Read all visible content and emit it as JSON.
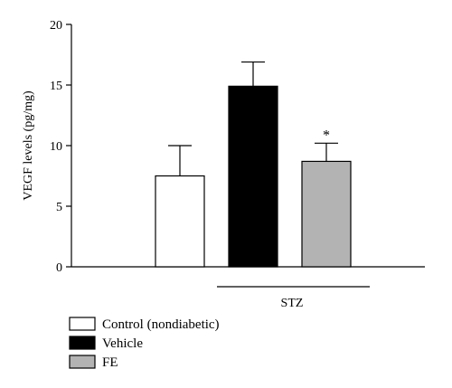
{
  "chart_data": {
    "type": "bar",
    "title": "",
    "xlabel": "",
    "ylabel": "VEGF levels (pg/mg)",
    "ylim": [
      0,
      20
    ],
    "yticks": [
      0,
      5,
      10,
      15,
      20
    ],
    "grid": false,
    "legend_position": "bottom-left",
    "series": [
      {
        "name": "Control (nondiabetic)",
        "value": 7.5,
        "error": 2.5,
        "color": "#ffffff",
        "annotation": ""
      },
      {
        "name": "Vehicle",
        "value": 14.9,
        "error": 2.0,
        "color": "#000000",
        "annotation": ""
      },
      {
        "name": "FE",
        "value": 8.7,
        "error": 1.5,
        "color": "#b3b3b3",
        "annotation": "*"
      }
    ],
    "group_label": "STZ"
  }
}
